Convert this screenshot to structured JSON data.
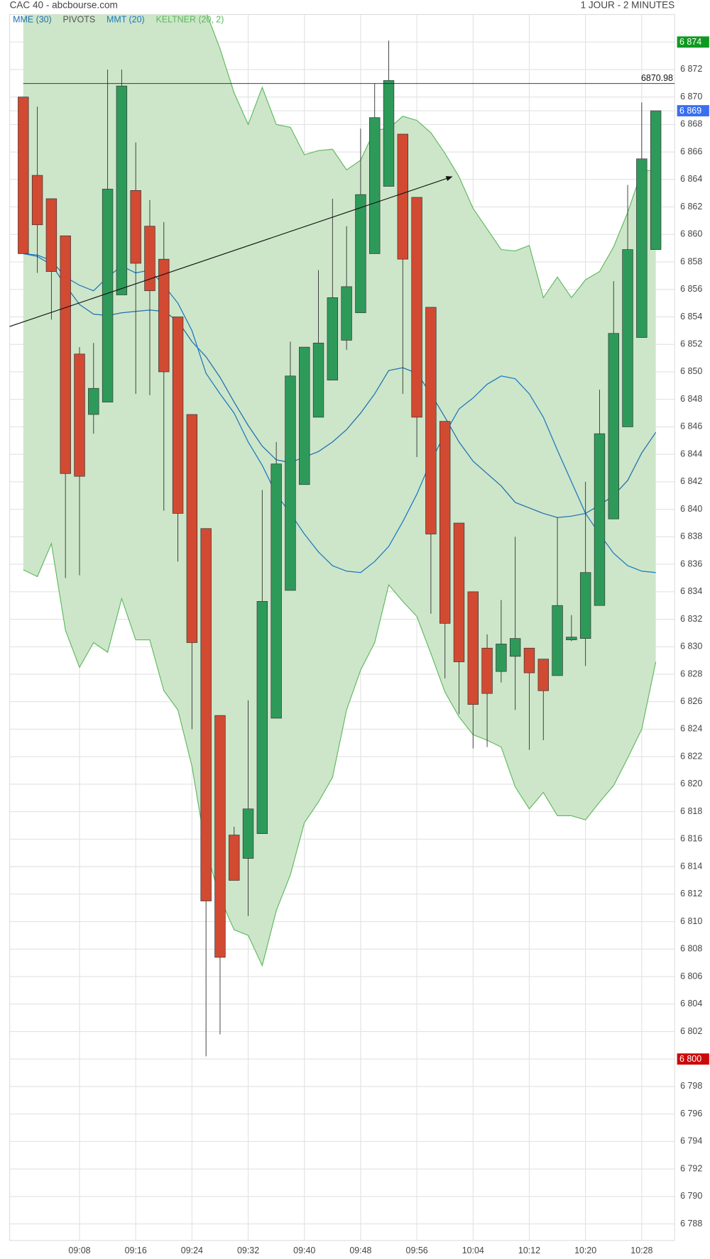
{
  "chart_data": {
    "type": "candlestick",
    "title": "CAC 40 - abcbourse.com",
    "subtitle": "1 JOUR - 2 MINUTES",
    "categories": [
      null,
      null,
      null,
      null,
      "09:08",
      null,
      null,
      null,
      "09:16",
      null,
      null,
      null,
      "09:24",
      null,
      null,
      null,
      "09:32",
      null,
      null,
      null,
      "09:40",
      null,
      null,
      null,
      "09:48",
      null,
      null,
      null,
      "09:56",
      null,
      null,
      null,
      "10:04",
      null,
      null,
      null,
      "10:12",
      null,
      null,
      null,
      "10:20",
      null,
      null,
      null,
      "10:28",
      null
    ],
    "open": [
      6870.0,
      6864.3,
      6862.6,
      6859.9,
      6851.3,
      6846.9,
      6847.8,
      6855.6,
      6863.2,
      6860.6,
      6858.2,
      6854.0,
      6846.9,
      6838.6,
      6825.0,
      6816.3,
      6814.6,
      6816.4,
      6824.8,
      6834.1,
      6841.8,
      6846.7,
      6849.4,
      6852.3,
      6854.3,
      6858.6,
      6863.5,
      6867.3,
      6862.7,
      6854.7,
      6846.4,
      6839.0,
      6834.0,
      6829.9,
      6828.2,
      6829.3,
      6829.9,
      6829.1,
      6827.9,
      6830.5,
      6830.6,
      6833.0,
      6839.3,
      6846.0,
      6852.5,
      6858.9
    ],
    "high": [
      6870.0,
      6869.3,
      6862.6,
      6859.9,
      6851.8,
      6852.1,
      6872.0,
      6872.0,
      6866.7,
      6862.5,
      6860.9,
      6854.0,
      6846.9,
      6838.6,
      6825.0,
      6816.9,
      6826.1,
      6841.4,
      6844.9,
      6852.2,
      6851.8,
      6857.4,
      6862.6,
      6860.6,
      6867.7,
      6871.0,
      6874.1,
      6867.3,
      6862.7,
      6854.7,
      6846.4,
      6839.0,
      6834.0,
      6830.9,
      6833.4,
      6838.0,
      6829.9,
      6829.1,
      6839.4,
      6832.3,
      6842.0,
      6848.7,
      6856.6,
      6863.6,
      6869.6,
      6869.0
    ],
    "low": [
      6858.6,
      6857.2,
      6853.8,
      6835.0,
      6835.2,
      6845.5,
      6847.8,
      6855.6,
      6848.4,
      6848.3,
      6839.9,
      6836.2,
      6824.0,
      6800.2,
      6801.8,
      6813.0,
      6810.4,
      6816.4,
      6824.8,
      6834.1,
      6841.8,
      6846.7,
      6849.4,
      6851.6,
      6854.3,
      6858.6,
      6863.5,
      6848.4,
      6843.8,
      6832.4,
      6827.7,
      6825.1,
      6822.6,
      6822.7,
      6827.4,
      6825.4,
      6822.5,
      6823.2,
      6827.9,
      6830.4,
      6828.6,
      6833.0,
      6839.3,
      6846.0,
      6852.5,
      6858.9
    ],
    "close": [
      6858.6,
      6860.7,
      6857.3,
      6842.6,
      6842.4,
      6848.8,
      6863.3,
      6870.8,
      6857.9,
      6855.9,
      6850.0,
      6839.7,
      6830.3,
      6811.5,
      6807.4,
      6813.0,
      6818.2,
      6833.3,
      6843.3,
      6849.7,
      6851.8,
      6852.1,
      6855.4,
      6856.2,
      6862.9,
      6868.5,
      6871.2,
      6858.2,
      6846.7,
      6838.2,
      6831.7,
      6828.9,
      6825.8,
      6826.6,
      6830.2,
      6830.6,
      6828.1,
      6826.8,
      6833.0,
      6830.7,
      6835.4,
      6845.5,
      6852.8,
      6858.9,
      6865.5,
      6869.0
    ],
    "up_color": "#2e9a5a",
    "down_color": "#d24a32",
    "series": [
      {
        "name": "MME (30)",
        "color": "#1f6fae",
        "values": [
          6858.6,
          6858.4,
          6857.8,
          6856.3,
          6854.9,
          6854.2,
          6854.1,
          6854.3,
          6854.4,
          6854.5,
          6854.4,
          6853.7,
          6852.2,
          6851.1,
          6849.6,
          6847.8,
          6846.1,
          6844.6,
          6843.6,
          6843.4,
          6843.8,
          6844.2,
          6844.9,
          6845.8,
          6847.0,
          6848.4,
          6850.1,
          6850.3,
          6849.9,
          6848.4,
          6846.7,
          6844.9,
          6843.5,
          6842.6,
          6841.7,
          6840.5,
          6840.1,
          6839.7,
          6839.4,
          6839.5,
          6839.7,
          6840.3,
          6841.0,
          6842.1,
          6844.1,
          6845.6
        ]
      },
      {
        "name": "PIVOTS",
        "color": "#555555"
      },
      {
        "name": "MMT (20)",
        "color": "#1a78c2",
        "values": [
          6858.6,
          6858.5,
          6858.1,
          6856.9,
          6856.3,
          6855.9,
          6856.9,
          6857.7,
          6857.2,
          6857.4,
          6856.3,
          6855.0,
          6853.0,
          6849.9,
          6848.4,
          6847.0,
          6844.9,
          6843.2,
          6841.1,
          6839.7,
          6838.2,
          6836.9,
          6835.9,
          6835.5,
          6835.4,
          6836.2,
          6837.3,
          6839.1,
          6841.1,
          6843.5,
          6845.5,
          6847.3,
          6848.1,
          6849.1,
          6849.7,
          6849.5,
          6848.4,
          6846.7,
          6844.3,
          6842.0,
          6839.7,
          6838.2,
          6836.8,
          6835.9,
          6835.5,
          6835.4
        ]
      },
      {
        "name": "KELTNER (20, 2)",
        "color": "#5cb85c",
        "fill": "#cde6c9",
        "upper": [
          6878.8,
          6878.8,
          6879.1,
          6879.4,
          6879.4,
          6879.4,
          6880.0,
          6880.5,
          6880.5,
          6880.2,
          6879.7,
          6878.8,
          6877.6,
          6876.2,
          6873.5,
          6870.3,
          6868.0,
          6870.7,
          6868.0,
          6867.8,
          6865.8,
          6866.1,
          6866.2,
          6864.7,
          6865.4,
          6867.6,
          6867.7,
          6868.6,
          6868.3,
          6867.4,
          6865.9,
          6864.2,
          6861.9,
          6860.4,
          6858.9,
          6858.8,
          6859.2,
          6855.4,
          6856.9,
          6855.4,
          6856.7,
          6857.3,
          6859.1,
          6861.6,
          6864.6,
          6864.7
        ],
        "lower": [
          6835.6,
          6835.1,
          6837.5,
          6831.2,
          6828.5,
          6830.3,
          6829.6,
          6833.5,
          6830.5,
          6830.5,
          6826.8,
          6825.4,
          6821.3,
          6815.2,
          6811.7,
          6809.4,
          6809.0,
          6806.8,
          6810.8,
          6813.4,
          6817.2,
          6818.7,
          6820.5,
          6825.4,
          6828.3,
          6830.3,
          6834.5,
          6833.3,
          6832.2,
          6829.5,
          6826.7,
          6824.9,
          6823.6,
          6823.2,
          6822.7,
          6819.8,
          6818.2,
          6819.4,
          6817.7,
          6817.7,
          6817.4,
          6818.7,
          6819.9,
          6821.9,
          6824.0,
          6828.9
        ]
      }
    ],
    "ylim": [
      6786.8,
      6876.0
    ],
    "yticks": [
      {
        "value": 6872,
        "label": "6 872"
      },
      {
        "value": 6870,
        "label": "6 870"
      },
      {
        "value": 6868,
        "label": "6 868"
      },
      {
        "value": 6866,
        "label": "6 866"
      },
      {
        "value": 6864,
        "label": "6 864"
      },
      {
        "value": 6862,
        "label": "6 862"
      },
      {
        "value": 6860,
        "label": "6 860"
      },
      {
        "value": 6858,
        "label": "6 858"
      },
      {
        "value": 6856,
        "label": "6 856"
      },
      {
        "value": 6854,
        "label": "6 854"
      },
      {
        "value": 6852,
        "label": "6 852"
      },
      {
        "value": 6850,
        "label": "6 850"
      },
      {
        "value": 6848,
        "label": "6 848"
      },
      {
        "value": 6846,
        "label": "6 846"
      },
      {
        "value": 6844,
        "label": "6 844"
      },
      {
        "value": 6842,
        "label": "6 842"
      },
      {
        "value": 6840,
        "label": "6 840"
      },
      {
        "value": 6838,
        "label": "6 838"
      },
      {
        "value": 6836,
        "label": "6 836"
      },
      {
        "value": 6834,
        "label": "6 834"
      },
      {
        "value": 6832,
        "label": "6 832"
      },
      {
        "value": 6830,
        "label": "6 830"
      },
      {
        "value": 6828,
        "label": "6 828"
      },
      {
        "value": 6826,
        "label": "6 826"
      },
      {
        "value": 6824,
        "label": "6 824"
      },
      {
        "value": 6822,
        "label": "6 822"
      },
      {
        "value": 6820,
        "label": "6 820"
      },
      {
        "value": 6818,
        "label": "6 818"
      },
      {
        "value": 6816,
        "label": "6 816"
      },
      {
        "value": 6814,
        "label": "6 814"
      },
      {
        "value": 6812,
        "label": "6 812"
      },
      {
        "value": 6810,
        "label": "6 810"
      },
      {
        "value": 6808,
        "label": "6 808"
      },
      {
        "value": 6806,
        "label": "6 806"
      },
      {
        "value": 6804,
        "label": "6 804"
      },
      {
        "value": 6802,
        "label": "6 802"
      },
      {
        "value": 6798,
        "label": "6 798"
      },
      {
        "value": 6796,
        "label": "6 796"
      },
      {
        "value": 6794,
        "label": "6 794"
      },
      {
        "value": 6792,
        "label": "6 792"
      },
      {
        "value": 6790,
        "label": "6 790"
      },
      {
        "value": 6788,
        "label": "6 788"
      }
    ],
    "badges": [
      {
        "value": 6874,
        "label": "6 874",
        "color": "#0f9a1f"
      },
      {
        "value": 6869,
        "label": "6 869",
        "color": "#3a6ff0"
      },
      {
        "value": 6800,
        "label": "6 800",
        "color": "#cc0a0a"
      }
    ],
    "hline": {
      "value": 6870.98
    },
    "trendline": {
      "x": [
        -1,
        30.5
      ],
      "y": [
        6853.3,
        6864.2
      ]
    },
    "grid": true
  }
}
